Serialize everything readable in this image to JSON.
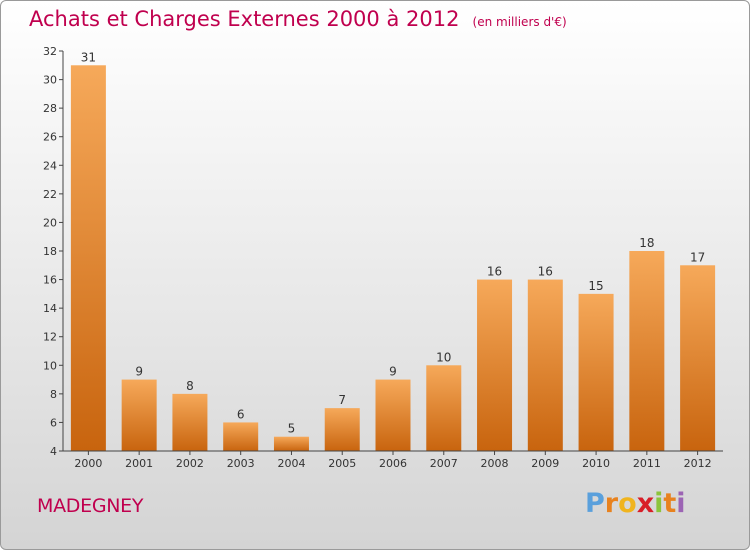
{
  "header": {
    "title": "Achats et Charges Externes 2000 à 2012",
    "unit": "(en milliers d'€)"
  },
  "footer": {
    "commune": "MADEGNEY",
    "logo_letters": [
      "P",
      "r",
      "o",
      "x",
      "i",
      "t",
      "i"
    ],
    "logo_colors": [
      "#5aa0dc",
      "#e8821e",
      "#f0b41e",
      "#d81e28",
      "#8cc43c",
      "#e8821e",
      "#9c64b4"
    ]
  },
  "colors": {
    "bar": "#f08a28",
    "bar_light": "#f6a95a",
    "bar_dark": "#c8640e",
    "text": "#c0004e",
    "axis": "#444444"
  },
  "chart_data": {
    "type": "bar",
    "title": "Achats et Charges Externes 2000 à 2012",
    "categories": [
      "2000",
      "2001",
      "2002",
      "2003",
      "2004",
      "2005",
      "2006",
      "2007",
      "2008",
      "2009",
      "2010",
      "2011",
      "2012"
    ],
    "values": [
      31,
      9,
      8,
      6,
      5,
      7,
      9,
      10,
      16,
      16,
      15,
      18,
      17
    ],
    "ylim": [
      4,
      32
    ],
    "yticks": [
      4,
      6,
      8,
      10,
      12,
      14,
      16,
      18,
      20,
      22,
      24,
      26,
      28,
      30,
      32
    ],
    "grid": false,
    "legend": "none"
  }
}
